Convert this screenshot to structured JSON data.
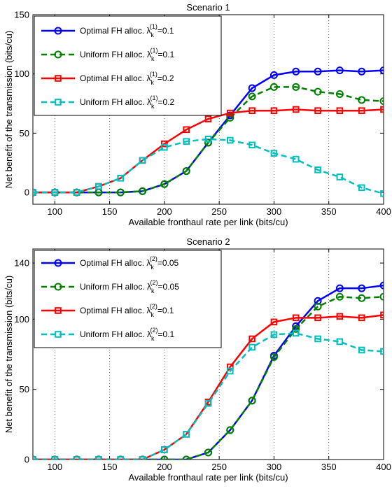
{
  "chart_data": [
    {
      "type": "line",
      "title": "Scenario 1",
      "xlabel": "Available fronthaul rate per link (bits/cu)",
      "ylabel": "Net benefit of the transmission (bits/cu)",
      "xlim": [
        80,
        400
      ],
      "ylim": [
        -10,
        150
      ],
      "xticks": [
        100,
        150,
        200,
        250,
        300,
        350,
        400
      ],
      "yticks": [
        0,
        50,
        100,
        150
      ],
      "grid": "vertical dotted",
      "legend_position": "top-left",
      "x": [
        80,
        100,
        120,
        140,
        160,
        180,
        200,
        220,
        240,
        260,
        280,
        300,
        320,
        340,
        360,
        380,
        400
      ],
      "series": [
        {
          "name": "Optimal FH alloc. λ_k^(1)=0.1",
          "legend_base": "Optimal FH alloc. λ",
          "legend_sub": "k",
          "legend_sup": "(1)",
          "legend_tail": "=0.1",
          "color": "#0000ff",
          "linestyle": "solid",
          "marker": "circle",
          "values": [
            0,
            0,
            0,
            0,
            0,
            1,
            7,
            18,
            42,
            65,
            88,
            99,
            102,
            102,
            103,
            102,
            103
          ]
        },
        {
          "name": "Uniform FH alloc. λ_k^(1)=0.1",
          "legend_base": "Uniform FH alloc. λ",
          "legend_sub": "k",
          "legend_sup": "(1)",
          "legend_tail": "=0.1",
          "color": "#008000",
          "linestyle": "dashed",
          "marker": "circle",
          "values": [
            0,
            0,
            0,
            0,
            0,
            1,
            7,
            18,
            42,
            63,
            81,
            89,
            89,
            85,
            83,
            78,
            77
          ]
        },
        {
          "name": "Optimal FH alloc. λ_k^(1)=0.2",
          "legend_base": "Optimal FH alloc. λ",
          "legend_sub": "k",
          "legend_sup": "(1)",
          "legend_tail": "=0.2",
          "color": "#ff0000",
          "linestyle": "solid",
          "marker": "square",
          "values": [
            0,
            0,
            0,
            5,
            12,
            27,
            41,
            53,
            62,
            67,
            69,
            69,
            70,
            69,
            69,
            69,
            70
          ]
        },
        {
          "name": "Uniform FH alloc. λ_k^(1)=0.2",
          "legend_base": "Uniform FH alloc. λ",
          "legend_sub": "k",
          "legend_sup": "(1)",
          "legend_tail": "=0.2",
          "color": "#00bfbf",
          "linestyle": "dashed",
          "marker": "square",
          "values": [
            0,
            0,
            0,
            5,
            12,
            27,
            38,
            43,
            45,
            44,
            40,
            33,
            28,
            19,
            13,
            4,
            -1
          ]
        }
      ]
    },
    {
      "type": "line",
      "title": "Scenario 2",
      "xlabel": "Available fronthaul rate per link (bits/cu)",
      "ylabel": "Net benefit of the transmission (bits/cu)",
      "xlim": [
        80,
        400
      ],
      "ylim": [
        0,
        150
      ],
      "xticks": [
        100,
        150,
        200,
        250,
        300,
        350,
        400
      ],
      "yticks": [
        0,
        50,
        100,
        140
      ],
      "grid": "vertical dotted",
      "legend_position": "top-left",
      "x": [
        80,
        100,
        120,
        140,
        160,
        180,
        200,
        220,
        240,
        260,
        280,
        300,
        320,
        340,
        360,
        380,
        400
      ],
      "series": [
        {
          "name": "Optimal FH alloc. λ_k^(2)=0.05",
          "legend_base": "Optimal FH alloc. λ",
          "legend_sub": "k",
          "legend_sup": "(2)",
          "legend_tail": "=0.05",
          "color": "#0000ff",
          "linestyle": "solid",
          "marker": "circle",
          "values": [
            0,
            0,
            0,
            0,
            0,
            0,
            0,
            0,
            5,
            21,
            42,
            74,
            95,
            113,
            122,
            122,
            124
          ]
        },
        {
          "name": "Uniform FH alloc. λ_k^(2)=0.05",
          "legend_base": "Uniform FH alloc. λ",
          "legend_sub": "k",
          "legend_sup": "(2)",
          "legend_tail": "=0.05",
          "color": "#008000",
          "linestyle": "dashed",
          "marker": "circle",
          "values": [
            0,
            0,
            0,
            0,
            0,
            0,
            0,
            0,
            5,
            21,
            42,
            73,
            93,
            109,
            116,
            115,
            116
          ]
        },
        {
          "name": "Optimal FH alloc. λ_k^(2)=0.1",
          "legend_base": "Optimal FH alloc. λ",
          "legend_sub": "k",
          "legend_sup": "(2)",
          "legend_tail": "=0.1",
          "color": "#ff0000",
          "linestyle": "solid",
          "marker": "square",
          "values": [
            0,
            0,
            0,
            0,
            0,
            0,
            7,
            18,
            41,
            66,
            86,
            98,
            101,
            101,
            102,
            101,
            103
          ]
        },
        {
          "name": "Uniform FH alloc. λ_k^(2)=0.1",
          "legend_base": "Uniform FH alloc. λ",
          "legend_sub": "k",
          "legend_sup": "(2)",
          "legend_tail": "=0.1",
          "color": "#00bfbf",
          "linestyle": "dashed",
          "marker": "square",
          "values": [
            0,
            0,
            0,
            0,
            0,
            0,
            7,
            18,
            40,
            63,
            80,
            89,
            90,
            86,
            84,
            78,
            77
          ]
        }
      ]
    }
  ]
}
